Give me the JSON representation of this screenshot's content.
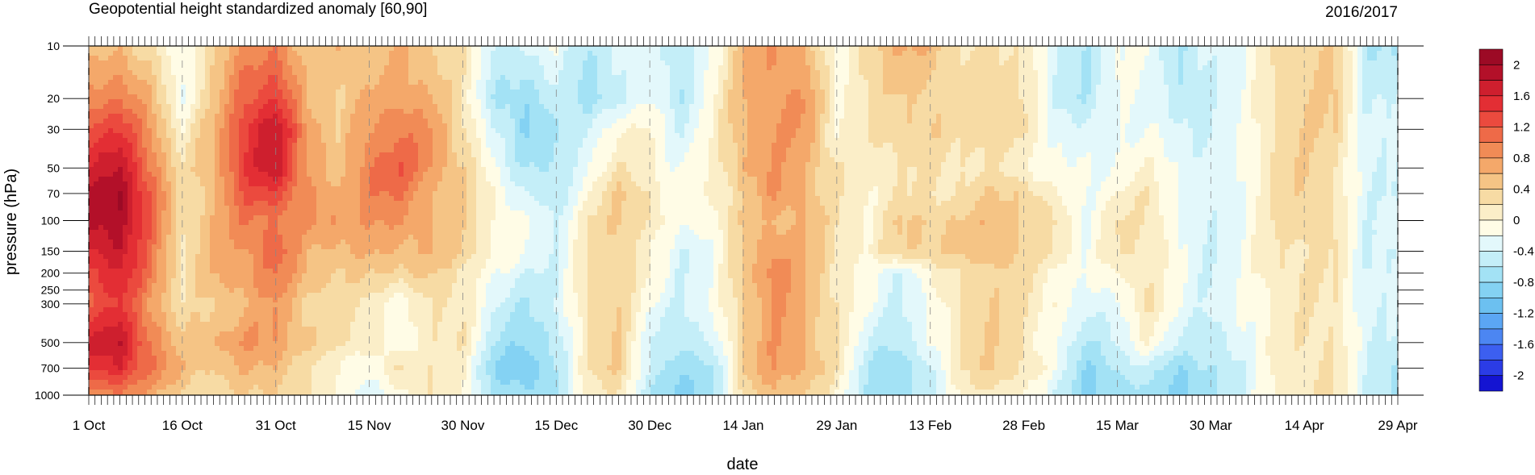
{
  "chart_data": {
    "type": "heatmap",
    "title": "Geopotential height standardized anomaly [60,90]",
    "subtitle": "2016/2017",
    "xlabel": "date",
    "ylabel": "pressure (hPa)",
    "x_ticks": [
      "1 Oct",
      "16 Oct",
      "31 Oct",
      "15 Nov",
      "30 Nov",
      "15 Dec",
      "30 Dec",
      "14 Jan",
      "29 Jan",
      "13 Feb",
      "28 Feb",
      "15 Mar",
      "30 Mar",
      "14 Apr",
      "29 Apr"
    ],
    "x_range_days": [
      0,
      210
    ],
    "y_ticks": [
      10,
      20,
      30,
      50,
      70,
      100,
      150,
      200,
      250,
      300,
      500,
      700,
      1000
    ],
    "y_scale": "log",
    "y_range": [
      1000,
      10
    ],
    "colorbar_labels": [
      "2",
      "1.6",
      "1.2",
      "0.8",
      "0.4",
      "0",
      "-0.4",
      "-0.8",
      "-1.2",
      "-1.6",
      "-2"
    ],
    "levels": [
      -2.2,
      -2.0,
      -1.8,
      -1.6,
      -1.4,
      -1.2,
      -1.0,
      -0.8,
      -0.6,
      -0.4,
      -0.2,
      0,
      0.2,
      0.4,
      0.6,
      0.8,
      1.0,
      1.2,
      1.4,
      1.6,
      1.8,
      2.0,
      2.2
    ],
    "colors": [
      "#1414d2",
      "#2b3ce6",
      "#3c5ff0",
      "#4c86f2",
      "#5ba6f4",
      "#6cc0f0",
      "#84d2f3",
      "#a3e2f5",
      "#c4eef8",
      "#e3f8fb",
      "#fffce6",
      "#fbeec8",
      "#f7dba4",
      "#f5c485",
      "#f4a86a",
      "#f18b56",
      "#ee6a48",
      "#eb4a3e",
      "#e32e34",
      "#ce1f2e",
      "#b31029",
      "#9c0a25"
    ],
    "anomaly_field": {
      "columns_days": [
        0,
        5,
        10,
        15,
        20,
        25,
        30,
        35,
        40,
        45,
        50,
        55,
        60,
        65,
        70,
        75,
        80,
        85,
        90,
        95,
        100,
        105,
        110,
        115,
        120,
        125,
        130,
        135,
        140,
        145,
        150,
        155,
        160,
        165,
        170,
        175,
        180,
        185,
        190,
        195,
        200,
        205,
        210
      ],
      "rows_hPa": [
        10,
        20,
        30,
        50,
        70,
        100,
        150,
        200,
        300,
        500,
        700,
        1000
      ],
      "values": [
        [
          0.4,
          0.6,
          0.2,
          -0.2,
          0.4,
          0.8,
          1.0,
          0.4,
          0.6,
          0.4,
          0.6,
          0.4,
          0.2,
          -0.4,
          -0.4,
          -0.2,
          -0.6,
          -0.4,
          -0.2,
          -0.6,
          -0.2,
          0.6,
          0.8,
          0.6,
          -0.2,
          0.4,
          0.6,
          0.6,
          0.2,
          0.2,
          0.2,
          -0.4,
          -0.6,
          -0.2,
          -0.2,
          -0.6,
          -0.4,
          -0.2,
          0.2,
          0.4,
          0.4,
          -0.6,
          -0.6
        ],
        [
          0.9,
          1.0,
          0.6,
          -0.2,
          0.4,
          1.2,
          1.4,
          0.6,
          0.4,
          0.6,
          0.8,
          0.6,
          0.2,
          -0.6,
          -0.8,
          -0.4,
          -0.8,
          -0.4,
          -0.2,
          -0.6,
          0.0,
          0.6,
          0.8,
          0.8,
          0.0,
          0.2,
          0.4,
          0.4,
          0.2,
          0.4,
          0.2,
          -0.4,
          -0.6,
          -0.2,
          -0.2,
          -0.6,
          -0.4,
          -0.2,
          0.2,
          0.4,
          0.4,
          -0.4,
          -0.4
        ],
        [
          1.3,
          1.4,
          0.8,
          0.0,
          0.6,
          1.4,
          1.8,
          0.8,
          0.4,
          0.8,
          1.0,
          0.8,
          0.3,
          -0.4,
          -0.8,
          -0.6,
          -0.4,
          0.0,
          0.0,
          -0.4,
          0.0,
          0.6,
          0.8,
          0.8,
          0.0,
          0.2,
          0.4,
          0.4,
          0.2,
          0.4,
          0.2,
          -0.2,
          -0.4,
          -0.2,
          -0.2,
          -0.4,
          -0.4,
          -0.2,
          0.2,
          0.4,
          0.4,
          -0.4,
          -0.4
        ],
        [
          1.6,
          1.8,
          1.0,
          0.2,
          0.6,
          1.4,
          1.8,
          0.8,
          0.4,
          1.0,
          1.2,
          0.8,
          0.4,
          -0.2,
          -0.6,
          -0.6,
          -0.2,
          0.2,
          0.0,
          -0.2,
          0.0,
          0.6,
          0.8,
          0.6,
          0.2,
          0.0,
          0.2,
          0.2,
          0.2,
          0.2,
          0.0,
          -0.2,
          -0.2,
          -0.2,
          0.0,
          -0.2,
          -0.4,
          -0.2,
          0.2,
          0.4,
          0.2,
          -0.4,
          -0.4
        ],
        [
          1.8,
          2.0,
          1.2,
          0.2,
          0.6,
          1.2,
          1.4,
          0.8,
          0.6,
          1.0,
          1.0,
          0.6,
          0.4,
          0.0,
          -0.4,
          -0.6,
          0.0,
          0.4,
          0.2,
          -0.2,
          0.0,
          0.4,
          0.8,
          0.6,
          0.2,
          0.0,
          0.2,
          0.2,
          0.2,
          0.4,
          0.4,
          0.0,
          -0.2,
          0.0,
          0.2,
          -0.2,
          -0.4,
          -0.2,
          0.2,
          0.4,
          0.2,
          -0.4,
          -0.4
        ],
        [
          1.8,
          2.0,
          1.2,
          0.2,
          0.6,
          1.0,
          1.0,
          0.8,
          0.8,
          0.8,
          0.8,
          0.6,
          0.4,
          0.0,
          -0.2,
          -0.4,
          0.2,
          0.4,
          0.2,
          -0.2,
          0.0,
          0.4,
          0.6,
          0.6,
          0.2,
          0.0,
          0.4,
          0.4,
          0.4,
          0.6,
          0.4,
          0.2,
          -0.2,
          0.2,
          0.2,
          -0.2,
          -0.4,
          -0.2,
          0.2,
          0.4,
          0.2,
          -0.4,
          -0.2
        ],
        [
          1.6,
          1.8,
          1.0,
          0.2,
          0.6,
          0.8,
          1.2,
          0.6,
          0.6,
          0.6,
          0.6,
          0.6,
          0.4,
          0.0,
          -0.2,
          -0.4,
          0.2,
          0.4,
          0.0,
          -0.4,
          -0.2,
          0.4,
          0.8,
          0.6,
          0.2,
          0.0,
          0.4,
          0.4,
          0.4,
          0.6,
          0.4,
          0.2,
          -0.2,
          0.2,
          0.2,
          -0.2,
          -0.4,
          -0.2,
          0.2,
          0.2,
          0.2,
          -0.4,
          -0.4
        ],
        [
          1.4,
          1.6,
          1.0,
          0.2,
          0.6,
          0.8,
          1.0,
          0.6,
          0.4,
          0.4,
          0.4,
          0.4,
          0.2,
          -0.2,
          -0.4,
          -0.4,
          0.2,
          0.4,
          0.0,
          -0.4,
          -0.2,
          0.4,
          1.0,
          0.6,
          0.2,
          -0.2,
          -0.4,
          0.0,
          0.2,
          0.4,
          0.2,
          0.0,
          -0.2,
          0.0,
          0.2,
          -0.2,
          -0.4,
          -0.2,
          0.2,
          0.2,
          0.2,
          -0.4,
          -0.4
        ],
        [
          1.2,
          1.4,
          0.8,
          0.2,
          0.4,
          0.6,
          0.8,
          0.4,
          0.2,
          0.2,
          -0.2,
          0.2,
          0.2,
          -0.4,
          -0.6,
          -0.4,
          0.2,
          0.4,
          -0.2,
          -0.4,
          -0.2,
          0.4,
          0.8,
          0.6,
          0.2,
          -0.2,
          -0.4,
          -0.2,
          0.2,
          0.4,
          0.2,
          0.0,
          -0.4,
          -0.2,
          0.2,
          -0.2,
          -0.4,
          -0.2,
          0.0,
          0.2,
          0.2,
          -0.4,
          -0.4
        ],
        [
          1.6,
          1.8,
          1.0,
          0.4,
          0.6,
          0.8,
          0.8,
          0.4,
          0.2,
          0.2,
          -0.2,
          0.2,
          0.2,
          -0.6,
          -0.8,
          -0.6,
          0.2,
          0.4,
          -0.4,
          -0.6,
          -0.4,
          0.4,
          0.8,
          0.6,
          0.2,
          -0.4,
          -0.6,
          -0.2,
          0.2,
          0.4,
          0.2,
          -0.2,
          -0.6,
          -0.4,
          0.0,
          -0.4,
          -0.6,
          -0.2,
          0.0,
          0.2,
          0.2,
          -0.4,
          -0.4
        ],
        [
          1.4,
          1.6,
          1.0,
          0.6,
          0.4,
          0.6,
          0.6,
          0.2,
          0.0,
          -0.2,
          0.2,
          0.2,
          0.0,
          -0.8,
          -1.0,
          -0.6,
          0.2,
          0.4,
          -0.4,
          -0.8,
          -0.6,
          0.4,
          0.8,
          0.6,
          0.2,
          -0.6,
          -0.8,
          -0.4,
          0.2,
          0.4,
          0.2,
          -0.2,
          -0.8,
          -0.6,
          -0.4,
          -0.8,
          -0.6,
          -0.4,
          0.0,
          0.2,
          0.2,
          -0.4,
          -0.6
        ],
        [
          0.8,
          1.0,
          0.6,
          0.4,
          0.2,
          0.4,
          0.4,
          0.2,
          0.0,
          -0.4,
          0.0,
          0.2,
          0.0,
          -0.6,
          -0.8,
          -0.6,
          0.0,
          0.2,
          -0.6,
          -1.0,
          -0.6,
          0.2,
          0.6,
          0.4,
          0.0,
          -0.6,
          -0.8,
          -0.4,
          0.0,
          0.2,
          0.0,
          -0.4,
          -0.8,
          -0.8,
          -0.6,
          -1.0,
          -0.6,
          -0.4,
          0.0,
          0.2,
          0.2,
          -0.4,
          -0.6
        ]
      ]
    }
  }
}
